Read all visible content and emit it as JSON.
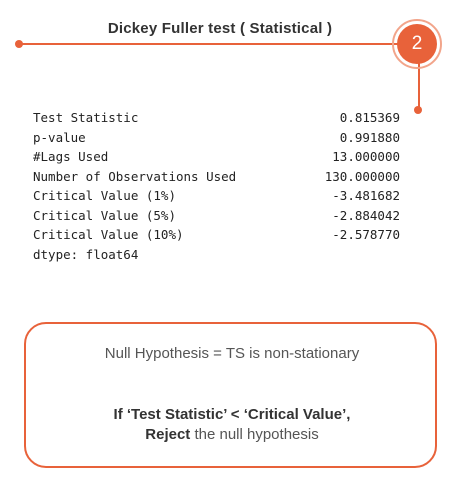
{
  "header": {
    "title": "Dickey Fuller test  ( Statistical )",
    "badge_number": "2",
    "accent_color": "#e8623a"
  },
  "results": {
    "rows": [
      {
        "label": "Test Statistic",
        "value": "0.815369"
      },
      {
        "label": "p-value",
        "value": "0.991880"
      },
      {
        "label": "#Lags Used",
        "value": "13.000000"
      },
      {
        "label": "Number of Observations Used",
        "value": "130.000000"
      },
      {
        "label": "Critical Value (1%)",
        "value": "-3.481682"
      },
      {
        "label": "Critical Value (5%)",
        "value": "-2.884042"
      },
      {
        "label": "Critical Value (10%)",
        "value": "-2.578770"
      }
    ],
    "dtype": "dtype: float64"
  },
  "hypothesis": {
    "null_text": "Null Hypothesis = TS is non-stationary",
    "rule_line1": "If ‘Test Statistic’ < ‘Critical Value’,",
    "rule_reject": "Reject",
    "rule_rest": " the null hypothesis"
  }
}
